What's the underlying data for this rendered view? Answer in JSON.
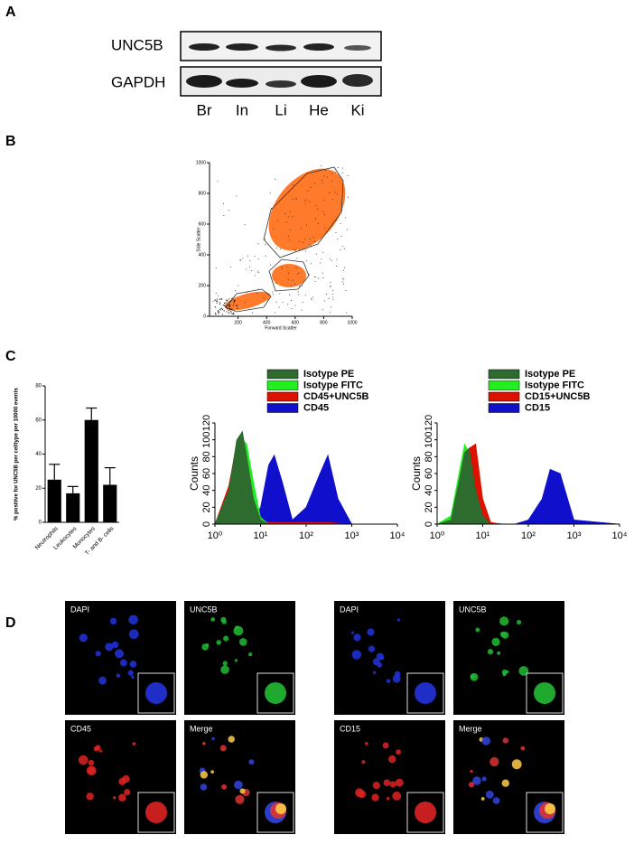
{
  "panels": {
    "a": "A",
    "b": "B",
    "c": "C",
    "d": "D"
  },
  "blot": {
    "rows": [
      "UNC5B",
      "GAPDH"
    ],
    "lanes": [
      "Br",
      "In",
      "Li",
      "He",
      "Ki"
    ]
  },
  "chart_data": [
    {
      "type": "scatter",
      "xlabel": "Forward Scatter",
      "ylabel": "Side Scatter",
      "xlim": [
        0,
        1000
      ],
      "ylim": [
        0,
        1000
      ],
      "xticks": [
        200,
        400,
        600,
        800,
        1000
      ],
      "yticks": [
        0,
        200,
        400,
        600,
        800,
        1000
      ]
    },
    {
      "type": "bar",
      "ylabel": "% positive for UNC5B per celltype  per 10000 events",
      "categories": [
        "Neutrophils",
        "Leukocytes",
        "Monocytes",
        "T- and B- cells"
      ],
      "values": [
        25,
        17,
        60,
        22
      ],
      "errors": [
        9,
        4,
        7,
        10
      ],
      "color": "#000000",
      "ylim": [
        0,
        80
      ],
      "yticks": [
        0,
        20,
        40,
        60,
        80
      ]
    },
    {
      "type": "area",
      "ylabel": "Counts",
      "log_x": true,
      "legend": "top",
      "x": [
        1,
        2,
        3,
        4,
        5,
        7,
        10,
        15,
        20,
        30,
        50,
        100,
        200,
        300,
        500,
        1000,
        10000
      ],
      "xlim": [
        1,
        10000
      ],
      "xticks": [
        {
          "value": 1,
          "label": "10⁰"
        },
        {
          "value": 10,
          "label": "10¹"
        },
        {
          "value": 100,
          "label": "10²"
        },
        {
          "value": 1000,
          "label": "10³"
        },
        {
          "value": 10000,
          "label": "10⁴"
        }
      ],
      "ylim": [
        0,
        120
      ],
      "yticks": [
        0,
        20,
        40,
        60,
        80,
        100,
        120
      ],
      "series": [
        {
          "name": "Isotype PE",
          "color": "#2e6b2e",
          "values": [
            0,
            40,
            100,
            110,
            80,
            30,
            5,
            0,
            0,
            0,
            0,
            0,
            0,
            0,
            0,
            0,
            0
          ]
        },
        {
          "name": "Isotype FITC",
          "color": "#22ee22",
          "values": [
            0,
            30,
            85,
            100,
            95,
            50,
            8,
            0,
            0,
            0,
            0,
            0,
            0,
            0,
            0,
            0,
            0
          ]
        },
        {
          "name": "CD45+UNC5B",
          "color": "#dd1100",
          "values": [
            0,
            45,
            95,
            80,
            60,
            20,
            3,
            2,
            2,
            2,
            2,
            2,
            2,
            2,
            1,
            0,
            0
          ]
        },
        {
          "name": "CD45",
          "color": "#1010cc",
          "values": [
            0,
            10,
            40,
            30,
            15,
            5,
            20,
            70,
            82,
            50,
            5,
            20,
            60,
            82,
            30,
            0,
            0
          ]
        }
      ]
    },
    {
      "type": "area",
      "ylabel": "Counts",
      "log_x": true,
      "legend": "top",
      "x": [
        1,
        2,
        3,
        4,
        5,
        7,
        10,
        15,
        20,
        30,
        50,
        100,
        200,
        300,
        500,
        1000,
        10000
      ],
      "xlim": [
        1,
        10000
      ],
      "xticks": [
        {
          "value": 1,
          "label": "10⁰"
        },
        {
          "value": 10,
          "label": "10¹"
        },
        {
          "value": 100,
          "label": "10²"
        },
        {
          "value": 1000,
          "label": "10³"
        },
        {
          "value": 10000,
          "label": "10⁴"
        }
      ],
      "ylim": [
        0,
        120
      ],
      "yticks": [
        0,
        20,
        40,
        60,
        80,
        100,
        120
      ],
      "series": [
        {
          "name": "Isotype PE",
          "color": "#2e6b2e",
          "values": [
            0,
            5,
            50,
            85,
            90,
            40,
            10,
            0,
            0,
            0,
            0,
            0,
            0,
            0,
            0,
            0,
            0
          ]
        },
        {
          "name": "Isotype FITC",
          "color": "#22ee22",
          "values": [
            0,
            10,
            60,
            95,
            85,
            30,
            5,
            0,
            0,
            0,
            0,
            0,
            0,
            0,
            0,
            0,
            0
          ]
        },
        {
          "name": "CD15+UNC5B",
          "color": "#dd1100",
          "values": [
            0,
            0,
            20,
            60,
            90,
            95,
            30,
            2,
            1,
            0,
            0,
            0,
            0,
            0,
            0,
            0,
            0
          ]
        },
        {
          "name": "CD15",
          "color": "#1010cc",
          "values": [
            0,
            0,
            10,
            25,
            30,
            20,
            5,
            0,
            0,
            0,
            0,
            5,
            30,
            65,
            60,
            5,
            0
          ]
        }
      ]
    }
  ],
  "micrographs": {
    "left": [
      "DAPI",
      "UNC5B",
      "CD45",
      "Merge"
    ],
    "right": [
      "DAPI",
      "UNC5B",
      "CD15",
      "Merge"
    ]
  }
}
